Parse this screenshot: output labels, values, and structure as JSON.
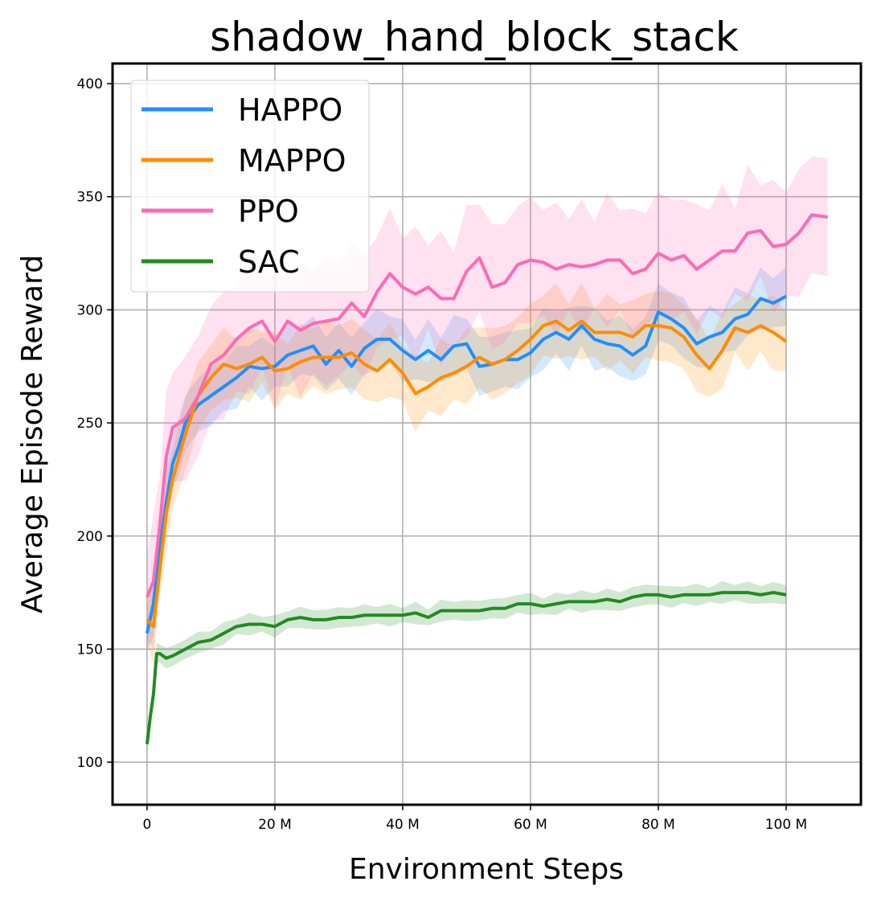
{
  "chart_data": {
    "type": "line",
    "title": "shadow_hand_block_stack",
    "xlabel": "Environment Steps",
    "ylabel": "Average Episode Reward",
    "xlim": [
      -5.4,
      111.7
    ],
    "ylim": [
      81.2,
      408.9
    ],
    "grid": true,
    "legend_position": "top-left",
    "x_ticks": [
      {
        "v": 0,
        "label": "0"
      },
      {
        "v": 20,
        "label": "20 M"
      },
      {
        "v": 40,
        "label": "40 M"
      },
      {
        "v": 60,
        "label": "60 M"
      },
      {
        "v": 80,
        "label": "80 M"
      },
      {
        "v": 100,
        "label": "100 M"
      }
    ],
    "y_ticks": [
      {
        "v": 100,
        "label": "100"
      },
      {
        "v": 150,
        "label": "150"
      },
      {
        "v": 200,
        "label": "200"
      },
      {
        "v": 250,
        "label": "250"
      },
      {
        "v": 300,
        "label": "300"
      },
      {
        "v": 350,
        "label": "350"
      },
      {
        "v": 400,
        "label": "400"
      }
    ],
    "series": [
      {
        "name": "HAPPO",
        "color": "#1e90ff",
        "spread": 14,
        "x": [
          0,
          1,
          2,
          3,
          4,
          5,
          6,
          8,
          10,
          12,
          14,
          16,
          18,
          20,
          22,
          24,
          26,
          28,
          30,
          32,
          34,
          36,
          38,
          40,
          42,
          44,
          46,
          48,
          50,
          52,
          54,
          56,
          58,
          60,
          62,
          64,
          66,
          68,
          70,
          72,
          74,
          76,
          78,
          80,
          82,
          84,
          86,
          88,
          90,
          92,
          94,
          96,
          98,
          100
        ],
        "y": [
          157,
          170,
          195,
          215,
          232,
          240,
          250,
          258,
          262,
          266,
          270,
          275,
          274,
          275,
          280,
          282,
          284,
          276,
          282,
          275,
          283,
          287,
          287,
          282,
          278,
          282,
          278,
          284,
          285,
          275,
          276,
          278,
          278,
          281,
          287,
          290,
          287,
          293,
          287,
          285,
          284,
          280,
          284,
          299,
          296,
          292,
          285,
          288,
          290,
          296,
          298,
          305,
          303,
          306
        ]
      },
      {
        "name": "MAPPO",
        "color": "#ff8c00",
        "spread": 17,
        "x": [
          0,
          1,
          2,
          3,
          4,
          6,
          8,
          10,
          12,
          14,
          16,
          18,
          20,
          22,
          24,
          26,
          28,
          30,
          32,
          34,
          36,
          38,
          40,
          42,
          44,
          46,
          48,
          50,
          52,
          54,
          56,
          58,
          60,
          62,
          64,
          66,
          68,
          70,
          72,
          74,
          76,
          78,
          80,
          82,
          84,
          86,
          88,
          90,
          92,
          94,
          96,
          98,
          100
        ],
        "y": [
          163,
          160,
          185,
          210,
          225,
          245,
          262,
          270,
          276,
          274,
          276,
          279,
          273,
          274,
          277,
          279,
          279,
          279,
          281,
          276,
          273,
          278,
          272,
          263,
          266,
          270,
          272,
          275,
          279,
          276,
          278,
          282,
          287,
          293,
          295,
          291,
          295,
          290,
          290,
          290,
          288,
          293,
          293,
          292,
          288,
          280,
          274,
          282,
          292,
          290,
          293,
          290,
          286
        ]
      },
      {
        "name": "PPO",
        "color": "#ff69b4",
        "spread": 30,
        "x": [
          0,
          1,
          2,
          3,
          4,
          6,
          8,
          10,
          12,
          14,
          16,
          18,
          20,
          22,
          24,
          26,
          28,
          30,
          32,
          34,
          36,
          38,
          40,
          42,
          44,
          46,
          48,
          50,
          52,
          54,
          56,
          58,
          60,
          62,
          64,
          66,
          68,
          70,
          72,
          74,
          76,
          78,
          80,
          82,
          84,
          86,
          88,
          90,
          92,
          94,
          96,
          98,
          100,
          102,
          104,
          106.5
        ],
        "y": [
          173,
          180,
          205,
          235,
          248,
          252,
          262,
          276,
          280,
          287,
          292,
          295,
          286,
          295,
          291,
          294,
          295,
          296,
          303,
          297,
          308,
          316,
          310,
          307,
          310,
          305,
          305,
          317,
          323,
          310,
          312,
          320,
          322,
          321,
          318,
          320,
          319,
          320,
          322,
          322,
          316,
          318,
          325,
          322,
          324,
          318,
          322,
          326,
          326,
          334,
          335,
          328,
          329,
          334,
          342,
          341
        ]
      },
      {
        "name": "SAC",
        "color": "#228b22",
        "spread": 5,
        "x": [
          0,
          0.5,
          1,
          1.5,
          2,
          3,
          4,
          6,
          8,
          10,
          12,
          14,
          16,
          18,
          20,
          22,
          24,
          26,
          28,
          30,
          32,
          34,
          36,
          38,
          40,
          42,
          44,
          46,
          48,
          50,
          52,
          54,
          56,
          58,
          60,
          62,
          64,
          66,
          68,
          70,
          72,
          74,
          76,
          78,
          80,
          82,
          84,
          86,
          88,
          90,
          92,
          94,
          96,
          98,
          100
        ],
        "y": [
          108,
          120,
          130,
          148,
          148,
          146,
          147,
          150,
          153,
          154,
          157,
          160,
          161,
          161,
          160,
          163,
          164,
          163,
          163,
          164,
          164,
          165,
          165,
          165,
          165,
          166,
          164,
          167,
          167,
          167,
          167,
          168,
          168,
          170,
          170,
          169,
          170,
          171,
          171,
          171,
          172,
          171,
          173,
          174,
          174,
          173,
          174,
          174,
          174,
          175,
          175,
          175,
          174,
          175,
          174
        ]
      }
    ]
  }
}
